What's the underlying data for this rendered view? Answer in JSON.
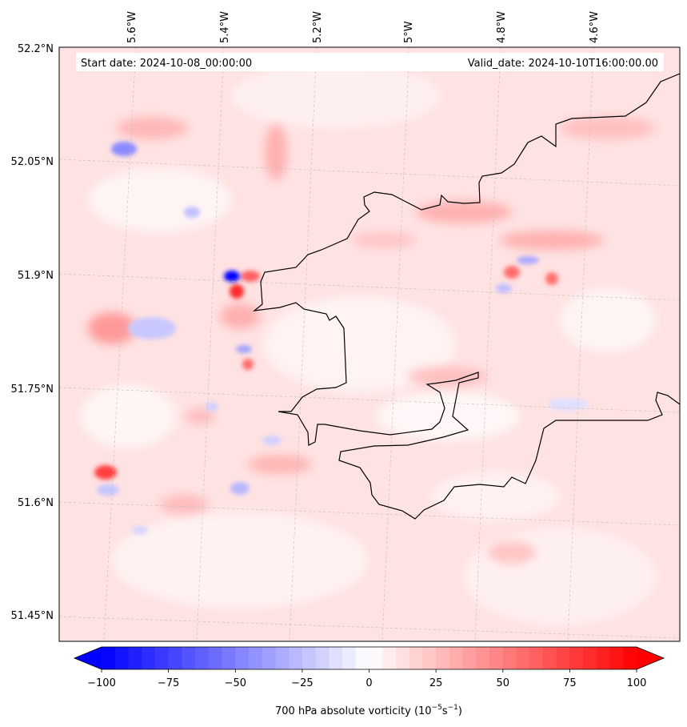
{
  "map": {
    "start_label": "Start date: 2024-10-08_00:00:00",
    "valid_label": "Valid_date: 2024-10-10T16:00:00.00",
    "lon_ticks": [
      "5.6°W",
      "5.4°W",
      "5.2°W",
      "5°W",
      "4.8°W",
      "4.6°W"
    ],
    "lat_ticks": [
      "52.2°N",
      "52.05°N",
      "51.9°N",
      "51.75°N",
      "51.6°N",
      "51.45°N"
    ],
    "field_colors": {
      "background": "#ffe2e2",
      "light": "#fff0f0",
      "mid": "#ffc2c2",
      "strong": "#ff6a6a",
      "max": "#ff1a1a",
      "neg_light": "#dcdcff",
      "neg_mid": "#9a9aff",
      "neg_max": "#0000ff"
    },
    "coastline_color": "#000000",
    "gridline_color": "#bbbbbb"
  },
  "colorbar": {
    "ticks": [
      "−100",
      "−75",
      "−50",
      "−25",
      "0",
      "25",
      "50",
      "75",
      "100"
    ],
    "label": "700 hPa absolute vorticity (10",
    "label_exp1": "−5",
    "label_mid": "s",
    "label_exp2": "−1",
    "label_end": ")",
    "min_color": "#0000ff",
    "mid_color": "#ffffff",
    "max_color": "#ff0000"
  }
}
